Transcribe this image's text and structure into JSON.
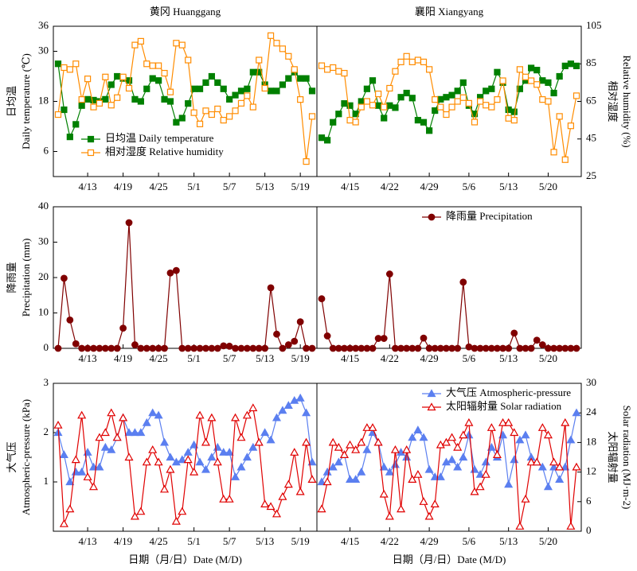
{
  "chart_data": [
    {
      "type": "line",
      "title": "黄冈 Huanggang",
      "ylabel": [
        "日均温",
        "Daily temperature (℃)"
      ],
      "categories": [
        null,
        null,
        null,
        null,
        null,
        "4/13",
        null,
        null,
        null,
        null,
        null,
        "4/19",
        null,
        null,
        null,
        null,
        null,
        "4/25",
        null,
        null,
        null,
        null,
        null,
        "5/1",
        null,
        null,
        null,
        null,
        null,
        "5/7",
        null,
        null,
        null,
        null,
        null,
        "5/13",
        null,
        null,
        null,
        null,
        null,
        "5/19",
        null,
        null
      ],
      "ylim": [
        0,
        36
      ],
      "yticks": [
        6,
        18,
        30,
        36
      ],
      "y2lim": [
        25,
        105
      ],
      "legend": "lower left",
      "series": [
        {
          "name": "日均温 Daily temperature",
          "color": "#008000",
          "marker": "square",
          "filled": true,
          "values": [
            27,
            16,
            9.5,
            12.5,
            17,
            18.5,
            18.3,
            18,
            18.5,
            22,
            24,
            23.5,
            23,
            18.5,
            18,
            21,
            23.5,
            23,
            18.5,
            18,
            13,
            14,
            17.5,
            21,
            21,
            22.5,
            24,
            22.5,
            21,
            18.5,
            19.5,
            20.5,
            21,
            25,
            25,
            22,
            20.5,
            20.5,
            22,
            23.5,
            25,
            23.5,
            23.5,
            20.5
          ]
        },
        {
          "name": "相对湿度 Relative humidity",
          "color": "#ff8c00",
          "marker": "square",
          "filled": false,
          "axis": "y2",
          "values": [
            58,
            83,
            82,
            85,
            66,
            77,
            62,
            64,
            78,
            63,
            67,
            78,
            72,
            95,
            97,
            85,
            84,
            84,
            80,
            70,
            96,
            95,
            87,
            59,
            53,
            60,
            58,
            61,
            55,
            57,
            60,
            64,
            68,
            62,
            87,
            72,
            100,
            96,
            93,
            89,
            82,
            66,
            33,
            57
          ]
        }
      ]
    },
    {
      "type": "line",
      "title": "襄阳 Xiangyang",
      "y2label": [
        "相对湿度",
        "Relative humidity (%)"
      ],
      "categories": [
        null,
        null,
        null,
        null,
        null,
        "4/15",
        null,
        null,
        null,
        null,
        null,
        null,
        "4/22",
        null,
        null,
        null,
        null,
        null,
        null,
        "4/29",
        null,
        null,
        null,
        null,
        null,
        null,
        "5/6",
        null,
        null,
        null,
        null,
        null,
        null,
        "5/13",
        null,
        null,
        null,
        null,
        null,
        null,
        "5/20",
        null,
        null,
        null,
        null,
        null
      ],
      "ylim": [
        0,
        36
      ],
      "y2lim": [
        25,
        105
      ],
      "y2ticks": [
        25,
        45,
        65,
        85,
        105
      ],
      "series": [
        {
          "color": "#008000",
          "marker": "square",
          "filled": true,
          "values": [
            9.3,
            8.7,
            13,
            15,
            17.5,
            17,
            15,
            18,
            21,
            23,
            17,
            14,
            17,
            16.5,
            19,
            20,
            18.8,
            13.5,
            13,
            11,
            15.8,
            18.5,
            19,
            19.5,
            20.5,
            22.5,
            17,
            15,
            19,
            20.5,
            21,
            25,
            22.5,
            16,
            15.5,
            21,
            23,
            26,
            25.5,
            23,
            22.5,
            20,
            24,
            26.5,
            27,
            26.5
          ]
        },
        {
          "color": "#ff8c00",
          "marker": "square",
          "filled": false,
          "axis": "y2",
          "values": [
            84,
            82,
            83,
            81,
            80,
            55,
            54,
            62,
            65,
            63,
            69,
            62,
            72,
            81,
            86,
            89,
            86,
            87,
            86,
            82,
            66,
            62,
            58,
            62,
            65,
            67,
            64,
            54,
            65,
            63,
            62,
            66,
            76,
            56,
            55,
            82,
            78,
            76,
            74,
            66,
            65,
            38,
            57,
            34,
            52,
            68
          ]
        }
      ]
    },
    {
      "type": "line",
      "ylabel": [
        "降雨量",
        "Precipitation (mm)"
      ],
      "categories": [
        null,
        null,
        null,
        null,
        null,
        "4/13",
        null,
        null,
        null,
        null,
        null,
        "4/19",
        null,
        null,
        null,
        null,
        null,
        "4/25",
        null,
        null,
        null,
        null,
        null,
        "5/1",
        null,
        null,
        null,
        null,
        null,
        "5/7",
        null,
        null,
        null,
        null,
        null,
        "5/13",
        null,
        null,
        null,
        null,
        null,
        "5/19",
        null,
        null
      ],
      "ylim": [
        0,
        40
      ],
      "yticks": [
        0,
        10,
        20,
        30,
        40
      ],
      "series": [
        {
          "color": "#800000",
          "marker": "circle",
          "filled": true,
          "values": [
            0,
            19.8,
            8,
            1.3,
            0,
            0,
            0,
            0,
            0,
            0,
            0,
            5.7,
            35.5,
            1,
            0,
            0,
            0,
            0,
            0,
            21.3,
            22,
            0,
            0,
            0,
            0,
            0,
            0,
            0,
            0.7,
            0.6,
            0,
            0,
            0,
            0,
            0,
            0,
            17.1,
            4,
            0,
            1,
            2,
            7.5,
            0,
            0
          ]
        }
      ]
    },
    {
      "type": "line",
      "legend": "upper right",
      "categories": [
        null,
        null,
        null,
        null,
        null,
        "4/15",
        null,
        null,
        null,
        null,
        null,
        null,
        "4/22",
        null,
        null,
        null,
        null,
        null,
        null,
        "4/29",
        null,
        null,
        null,
        null,
        null,
        null,
        "5/6",
        null,
        null,
        null,
        null,
        null,
        null,
        "5/13",
        null,
        null,
        null,
        null,
        null,
        null,
        "5/20",
        null,
        null,
        null,
        null,
        null
      ],
      "ylim": [
        0,
        40
      ],
      "series": [
        {
          "name": "降雨量 Precipitation",
          "color": "#800000",
          "marker": "circle",
          "filled": true,
          "values": [
            14,
            3.5,
            0,
            0,
            0,
            0,
            0,
            0,
            0,
            0,
            2.8,
            2.8,
            21,
            0,
            0,
            0,
            0,
            0,
            2.9,
            0,
            0,
            0,
            0,
            0,
            0,
            18.7,
            0.4,
            0,
            0,
            0,
            0,
            0,
            0,
            0,
            4.3,
            0,
            0,
            0,
            2.3,
            1,
            0,
            0,
            0,
            0,
            0,
            0
          ]
        }
      ]
    },
    {
      "type": "line",
      "ylabel": [
        "大气压",
        "Atmospheric-pressure (kPa)"
      ],
      "xlabel": "日期（月/日）Date (M/D)",
      "categories": [
        null,
        null,
        null,
        null,
        null,
        "4/13",
        null,
        null,
        null,
        null,
        null,
        "4/19",
        null,
        null,
        null,
        null,
        null,
        "4/25",
        null,
        null,
        null,
        null,
        null,
        "5/1",
        null,
        null,
        null,
        null,
        null,
        "5/7",
        null,
        null,
        null,
        null,
        null,
        "5/13",
        null,
        null,
        null,
        null,
        null,
        "5/19",
        null,
        null
      ],
      "ylim": [
        0,
        3
      ],
      "yticks": [
        1,
        2,
        3
      ],
      "y2lim": [
        0,
        30
      ],
      "series": [
        {
          "color": "#5b7ff0",
          "marker": "triangle",
          "filled": true,
          "values": [
            2.0,
            1.55,
            1.0,
            1.2,
            1.2,
            1.6,
            1.3,
            1.3,
            1.7,
            1.65,
            1.9,
            2.3,
            2.0,
            2.0,
            2.0,
            2.2,
            2.4,
            2.35,
            1.8,
            1.5,
            1.4,
            1.45,
            1.6,
            1.75,
            1.4,
            1.25,
            1.5,
            1.7,
            1.6,
            1.6,
            1.1,
            1.3,
            1.5,
            1.7,
            1.8,
            2.0,
            1.85,
            2.3,
            2.45,
            2.55,
            2.65,
            2.7,
            2.4,
            1.4
          ]
        },
        {
          "color": "#e00000",
          "marker": "triangle",
          "filled": false,
          "axis": "y2",
          "values": [
            21.5,
            1.5,
            4.5,
            14.5,
            23.5,
            11,
            9,
            19,
            20,
            24,
            19,
            23,
            15,
            3,
            4,
            14,
            16.5,
            14,
            8.5,
            12.5,
            2,
            4,
            14.5,
            12,
            23.5,
            18,
            23,
            14,
            6.5,
            6.5,
            23,
            19,
            23.5,
            25,
            18,
            5.5,
            5,
            3.5,
            7,
            9.5,
            16,
            8,
            18,
            10.5
          ]
        }
      ]
    },
    {
      "type": "line",
      "y2label": [
        "太阳辐射量",
        "Solar radiation (MJ·m-2)"
      ],
      "xlabel": "日期（月/日）Date (M/D)",
      "legend": "upper right",
      "categories": [
        null,
        null,
        null,
        null,
        null,
        "4/15",
        null,
        null,
        null,
        null,
        null,
        null,
        "4/22",
        null,
        null,
        null,
        null,
        null,
        null,
        "4/29",
        null,
        null,
        null,
        null,
        null,
        null,
        "5/6",
        null,
        null,
        null,
        null,
        null,
        null,
        "5/13",
        null,
        null,
        null,
        null,
        null,
        null,
        "5/20",
        null,
        null,
        null,
        null,
        null
      ],
      "ylim": [
        0,
        3
      ],
      "y2lim": [
        0,
        30
      ],
      "y2ticks": [
        0,
        6,
        12,
        18,
        24,
        30
      ],
      "series": [
        {
          "name": "大气压 Atmospheric-pressure",
          "color": "#5b7ff0",
          "marker": "triangle",
          "filled": true,
          "values": [
            1.0,
            1.2,
            1.3,
            1.4,
            1.55,
            1.05,
            1.05,
            1.2,
            1.65,
            2.0,
            1.8,
            1.3,
            1.2,
            1.35,
            1.6,
            1.5,
            1.9,
            2.05,
            1.9,
            1.25,
            1.1,
            1.1,
            1.4,
            1.45,
            1.3,
            1.5,
            1.95,
            1.25,
            1.15,
            1.4,
            1.7,
            1.5,
            1.95,
            0.95,
            1.45,
            1.85,
            1.95,
            1.5,
            1.4,
            1.3,
            0.9,
            1.3,
            1.05,
            1.3,
            1.85,
            2.4
          ]
        },
        {
          "name": "太阳辐射量 Solar radiation",
          "color": "#e00000",
          "marker": "triangle",
          "filled": false,
          "axis": "y2",
          "values": [
            4.5,
            10,
            18,
            17,
            15.5,
            17.5,
            16.5,
            18,
            21,
            21,
            18,
            7.5,
            3,
            16.5,
            4.5,
            16.5,
            10.5,
            11.5,
            6,
            3,
            5.5,
            17.5,
            18,
            19,
            17,
            19.5,
            22,
            8,
            9,
            11.5,
            21,
            15.5,
            22,
            22,
            20,
            1,
            6.5,
            14,
            14,
            21,
            19.5,
            14,
            13,
            22,
            1,
            13
          ]
        }
      ]
    }
  ]
}
